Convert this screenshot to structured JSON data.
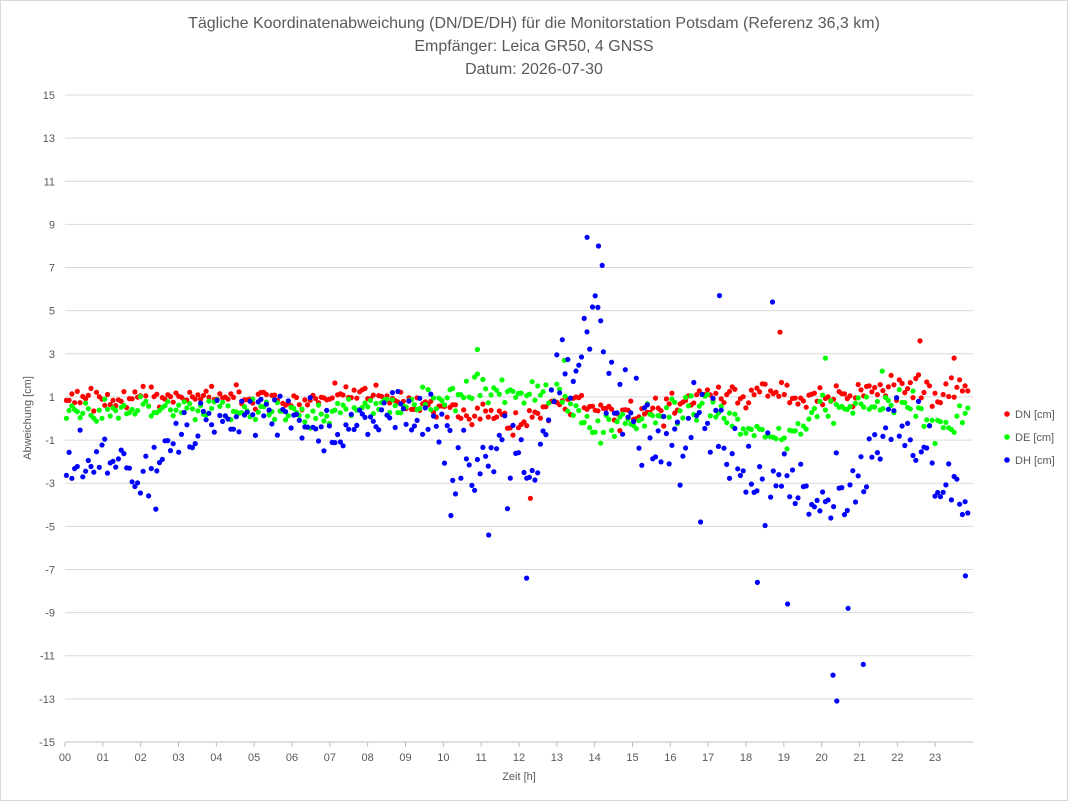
{
  "chart_data": {
    "type": "scatter",
    "title": [
      "Tägliche Koordinatenabweichung (DN/DE/DH) für die Monitorstation Potsdam (Referenz 36,3 km)",
      "Empfänger: Leica GR50, 4 GNSS",
      "Datum: 2026-07-30"
    ],
    "xlabel": "Zeit [h]",
    "ylabel": "Abweichung [cm]",
    "xlim": [
      0,
      24
    ],
    "ylim": [
      -15,
      15
    ],
    "x_ticks": [
      "00",
      "01",
      "02",
      "03",
      "04",
      "05",
      "06",
      "07",
      "08",
      "09",
      "10",
      "11",
      "12",
      "13",
      "14",
      "15",
      "16",
      "17",
      "18",
      "19",
      "20",
      "21",
      "22",
      "23"
    ],
    "y_ticks": [
      15,
      13,
      11,
      9,
      7,
      5,
      3,
      1,
      -1,
      -3,
      -5,
      -7,
      -9,
      -11,
      -13,
      -15
    ],
    "grid": true,
    "legend_position": "right",
    "series": [
      {
        "name": "DN [cm]",
        "color": "#ff0000",
        "segments": [
          [
            0,
            1.0
          ],
          [
            2,
            1.0
          ],
          [
            4,
            1.1
          ],
          [
            6,
            0.8
          ],
          [
            8,
            1.2
          ],
          [
            10,
            0.3
          ],
          [
            11,
            0.2
          ],
          [
            12,
            -0.4
          ],
          [
            13,
            0.8
          ],
          [
            14,
            0.5
          ],
          [
            15,
            0.0
          ],
          [
            16,
            0.5
          ],
          [
            17,
            1.2
          ],
          [
            18,
            0.9
          ],
          [
            19,
            1.3
          ],
          [
            20,
            0.8
          ],
          [
            21,
            1.0
          ],
          [
            22,
            1.6
          ],
          [
            23,
            1.2
          ],
          [
            23.8,
            1.4
          ]
        ],
        "noise": 0.45,
        "highlights": [
          [
            12.3,
            -3.7
          ],
          [
            18.9,
            4.0
          ],
          [
            22.6,
            3.6
          ],
          [
            23.5,
            2.8
          ]
        ]
      },
      {
        "name": "DE [cm]",
        "color": "#00ff00",
        "segments": [
          [
            0,
            0.3
          ],
          [
            2,
            0.5
          ],
          [
            4,
            0.5
          ],
          [
            6,
            0.3
          ],
          [
            7,
            0.2
          ],
          [
            8,
            0.6
          ],
          [
            10,
            0.9
          ],
          [
            11,
            1.4
          ],
          [
            12,
            1.0
          ],
          [
            13,
            1.4
          ],
          [
            14,
            -0.6
          ],
          [
            15,
            -0.2
          ],
          [
            16,
            0.4
          ],
          [
            17,
            0.6
          ],
          [
            18,
            -0.5
          ],
          [
            19,
            -1.0
          ],
          [
            20,
            0.5
          ],
          [
            21,
            0.4
          ],
          [
            22,
            1.2
          ],
          [
            23,
            -0.4
          ],
          [
            23.8,
            0.0
          ]
        ],
        "noise": 0.5,
        "highlights": [
          [
            10.9,
            3.2
          ],
          [
            13.2,
            2.7
          ],
          [
            20.1,
            2.8
          ],
          [
            21.6,
            2.2
          ]
        ]
      },
      {
        "name": "DH [cm]",
        "color": "#0000ff",
        "segments": [
          [
            0,
            -1.6
          ],
          [
            0.7,
            -2.3
          ],
          [
            1.5,
            -2.0
          ],
          [
            2.0,
            -3.4
          ],
          [
            2.3,
            -2.2
          ],
          [
            3,
            -0.6
          ],
          [
            4,
            -0.4
          ],
          [
            5,
            0.4
          ],
          [
            6,
            0.0
          ],
          [
            7,
            -0.5
          ],
          [
            8,
            -0.3
          ],
          [
            9,
            0.6
          ],
          [
            10,
            -0.2
          ],
          [
            10.5,
            -2.0
          ],
          [
            11,
            -1.5
          ],
          [
            12,
            -2.0
          ],
          [
            12.5,
            -2.5
          ],
          [
            13,
            2.5
          ],
          [
            13.5,
            3.0
          ],
          [
            14,
            4.5
          ],
          [
            14.5,
            0.8
          ],
          [
            15,
            0.0
          ],
          [
            16,
            -2.0
          ],
          [
            16.5,
            -0.5
          ],
          [
            17,
            0.8
          ],
          [
            17.5,
            -1.0
          ],
          [
            18,
            -3.0
          ],
          [
            19,
            -2.5
          ],
          [
            20,
            -4.0
          ],
          [
            20.5,
            -3.5
          ],
          [
            21,
            -3.0
          ],
          [
            22,
            0.5
          ],
          [
            23,
            -2.5
          ],
          [
            23.8,
            -4.0
          ]
        ],
        "noise": 1.1,
        "highlights": [
          [
            2.4,
            -4.2
          ],
          [
            10.2,
            -4.5
          ],
          [
            11.2,
            -5.4
          ],
          [
            12.2,
            -7.4
          ],
          [
            13.8,
            8.4
          ],
          [
            14.1,
            8.0
          ],
          [
            14.2,
            7.1
          ],
          [
            16.8,
            -4.8
          ],
          [
            17.3,
            5.7
          ],
          [
            18.3,
            -7.6
          ],
          [
            18.7,
            5.4
          ],
          [
            19.1,
            -8.6
          ],
          [
            20.3,
            -11.9
          ],
          [
            20.4,
            -13.1
          ],
          [
            20.7,
            -8.8
          ],
          [
            21.1,
            -11.4
          ],
          [
            23.8,
            -7.3
          ]
        ]
      }
    ]
  }
}
